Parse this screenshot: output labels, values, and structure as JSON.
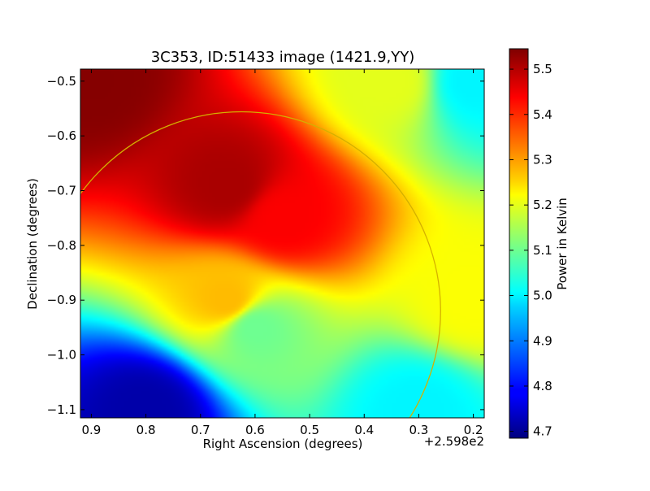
{
  "chart_data": {
    "type": "heatmap",
    "title": "3C353, ID:51433 image (1421.9,YY)",
    "xlabel": "Right Ascension (degrees)",
    "ylabel": "Declination (degrees)",
    "x_offset_label": "+2.598e2",
    "xlim": [
      0.92,
      0.18
    ],
    "ylim": [
      -1.115,
      -0.478
    ],
    "x_ticks": [
      0.9,
      0.8,
      0.7,
      0.6,
      0.5,
      0.4,
      0.3,
      0.2
    ],
    "y_ticks": [
      -0.5,
      -0.6,
      -0.7,
      -0.8,
      -0.9,
      -1.0,
      -1.1
    ],
    "x_tick_labels": [
      "0.9",
      "0.8",
      "0.7",
      "0.6",
      "0.5",
      "0.4",
      "0.3",
      "0.2"
    ],
    "y_tick_labels": [
      "−0.5",
      "−0.6",
      "−0.7",
      "−0.8",
      "−0.9",
      "−1.0",
      "−1.1"
    ],
    "colormap": "jet",
    "colorbar": {
      "label": "Power in Kelvin",
      "vmin": 4.685,
      "vmax": 5.545,
      "ticks": [
        4.7,
        4.8,
        4.9,
        5.0,
        5.1,
        5.2,
        5.3,
        5.4,
        5.5
      ],
      "tick_labels": [
        "4.7",
        "4.8",
        "4.9",
        "5.0",
        "5.1",
        "5.2",
        "5.3",
        "5.4",
        "5.5"
      ]
    },
    "field_samples": [
      {
        "ra": 0.9,
        "dec": -0.5,
        "value": 5.54
      },
      {
        "ra": 0.65,
        "dec": -0.69,
        "value": 5.51
      },
      {
        "ra": 0.55,
        "dec": -0.75,
        "value": 5.44
      },
      {
        "ra": 0.35,
        "dec": -0.5,
        "value": 5.2
      },
      {
        "ra": 0.2,
        "dec": -0.5,
        "value": 5.0
      },
      {
        "ra": 0.2,
        "dec": -0.9,
        "value": 5.22
      },
      {
        "ra": 0.65,
        "dec": -0.9,
        "value": 5.28
      },
      {
        "ra": 0.6,
        "dec": -0.95,
        "value": 5.1
      },
      {
        "ra": 0.8,
        "dec": -1.1,
        "value": 4.72
      },
      {
        "ra": 0.3,
        "dec": -1.1,
        "value": 5.0
      }
    ],
    "overlay_circle": {
      "center_ra": 0.625,
      "center_dec": -0.92,
      "radius_deg": 0.365,
      "color": "#d4b000"
    },
    "grid": false
  }
}
